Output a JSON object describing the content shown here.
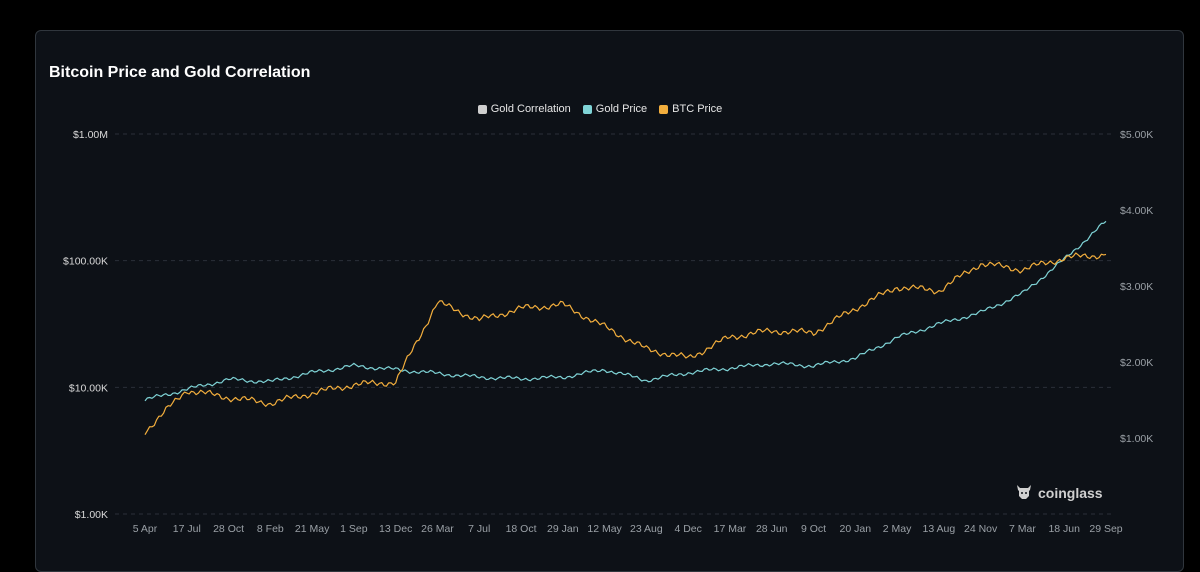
{
  "header": {
    "title": "Bitcoin Price and Gold Correlation"
  },
  "brand": {
    "name": "coinglass",
    "logo_icon": "coinglass-bull-icon"
  },
  "colors": {
    "background": "#000000",
    "card": "#0d1117",
    "grid": "#2a2f38",
    "gold_correlation": "#cfcfcf",
    "gold_price": "#7fd3d6",
    "btc_price": "#f2ae3d",
    "axis_text": "#d9d9d9",
    "right_axis_text": "#9aa0a6"
  },
  "chart_data": {
    "type": "line",
    "title": "Bitcoin Price and Gold Correlation",
    "legend": [
      "Gold Correlation",
      "Gold Price",
      "BTC Price"
    ],
    "legend_position": "top-center",
    "grid": true,
    "x_tick_labels": [
      "5 Apr",
      "17 Jul",
      "28 Oct",
      "8 Feb",
      "21 May",
      "1 Sep",
      "13 Dec",
      "26 Mar",
      "7 Jul",
      "18 Oct",
      "29 Jan",
      "12 May",
      "23 Aug",
      "4 Dec",
      "17 Mar",
      "28 Jun",
      "9 Oct",
      "20 Jan",
      "2 May",
      "13 Aug",
      "24 Nov",
      "7 Mar",
      "18 Jun",
      "29 Sep"
    ],
    "y_left": {
      "scale": "log",
      "ylim": [
        1000,
        1000000
      ],
      "tick_values": [
        1000,
        10000,
        100000,
        1000000
      ],
      "tick_labels": [
        "$1.00K",
        "$10.00K",
        "$100.00K",
        "$1.00M"
      ]
    },
    "y_right": {
      "scale": "linear",
      "ylim": [
        0,
        5000
      ],
      "tick_values": [
        1000,
        2000,
        3000,
        4000,
        5000
      ],
      "tick_labels": [
        "$1.00K",
        "$2.00K",
        "$3.00K",
        "$4.00K",
        "$5.00K"
      ]
    },
    "series": [
      {
        "name": "BTC Price",
        "axis": "left",
        "x": [
          "5 Apr",
          "17 Jul",
          "28 Oct",
          "8 Feb",
          "21 May",
          "1 Sep",
          "13 Dec",
          "26 Mar",
          "7 Jul",
          "18 Oct",
          "29 Jan",
          "12 May",
          "23 Aug",
          "4 Dec",
          "17 Mar",
          "28 Jun",
          "9 Oct",
          "20 Jan",
          "2 May",
          "13 Aug",
          "24 Nov",
          "7 Mar",
          "18 Jun",
          "29 Sep"
        ],
        "values": [
          4500,
          9500,
          8300,
          7500,
          9000,
          10500,
          11000,
          47000,
          34000,
          42000,
          45000,
          30000,
          20000,
          17000,
          25000,
          28000,
          27000,
          42000,
          62000,
          58000,
          95000,
          85000,
          105000,
          112000
        ]
      },
      {
        "name": "Gold Price",
        "axis": "right",
        "x": [
          "5 Apr",
          "17 Jul",
          "28 Oct",
          "8 Feb",
          "21 May",
          "1 Sep",
          "13 Dec",
          "26 Mar",
          "7 Jul",
          "18 Oct",
          "29 Jan",
          "12 May",
          "23 Aug",
          "4 Dec",
          "17 Mar",
          "28 Jun",
          "9 Oct",
          "20 Jan",
          "2 May",
          "13 Aug",
          "24 Nov",
          "7 Mar",
          "18 Jun",
          "29 Sep"
        ],
        "values": [
          1500,
          1640,
          1770,
          1740,
          1860,
          1950,
          1900,
          1850,
          1800,
          1780,
          1800,
          1900,
          1760,
          1860,
          1920,
          1980,
          1950,
          2050,
          2320,
          2500,
          2650,
          2900,
          3350,
          3850
        ]
      },
      {
        "name": "Gold Correlation",
        "axis": "left",
        "x": [],
        "values": []
      }
    ]
  }
}
